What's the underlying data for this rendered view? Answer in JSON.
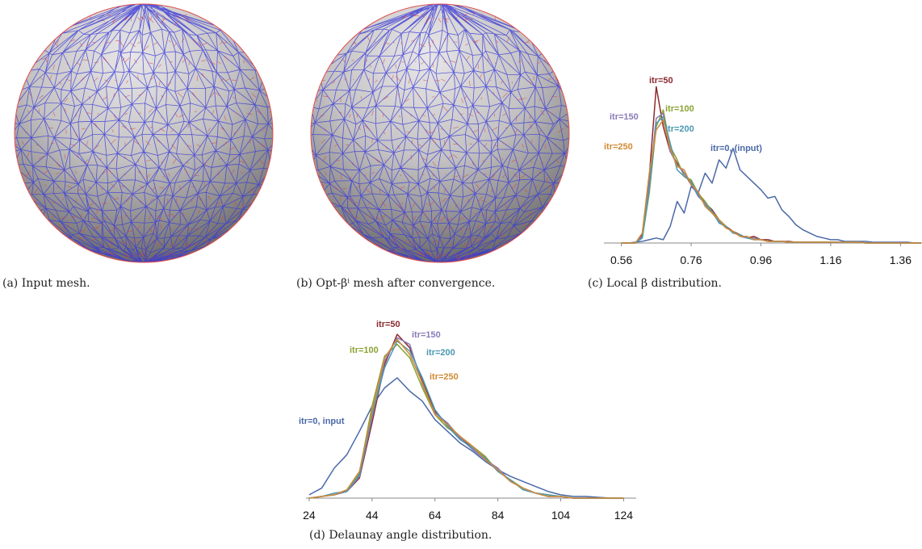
{
  "figure": {
    "captions": [
      "(a) Input mesh.",
      "(b) Opt-βⁱ mesh after convergence."
    ]
  },
  "chart_data": [
    {
      "type": "line",
      "caption": "(c) Local β distribution.",
      "x": [
        0.56,
        0.58,
        0.6,
        0.62,
        0.64,
        0.66,
        0.68,
        0.7,
        0.72,
        0.74,
        0.76,
        0.78,
        0.8,
        0.82,
        0.84,
        0.86,
        0.88,
        0.9,
        0.92,
        0.94,
        0.96,
        0.98,
        1.0,
        1.02,
        1.04,
        1.06,
        1.08,
        1.1,
        1.12,
        1.14,
        1.16,
        1.18,
        1.2,
        1.22,
        1.24,
        1.26,
        1.28,
        1.3,
        1.32,
        1.34,
        1.36,
        1.38,
        1.4,
        1.42
      ],
      "xlim": [
        0.51,
        1.41
      ],
      "ylim": [
        0,
        100
      ],
      "xticks": [
        0.56,
        0.76,
        0.96,
        1.16,
        1.36
      ],
      "series": [
        {
          "name": "itr=0, (input)",
          "color": "#4a69a8",
          "values": [
            0,
            0,
            0.5,
            1,
            2,
            3,
            2,
            10,
            25,
            18,
            34,
            30,
            42,
            36,
            50,
            45,
            57,
            44,
            40,
            36,
            32,
            27,
            28,
            20,
            16,
            11,
            8,
            6,
            4,
            3,
            2,
            2,
            1,
            1,
            1,
            1,
            0.5,
            0.5,
            0.5,
            0.5,
            0.5,
            0.5,
            0,
            0
          ]
        },
        {
          "name": "itr=50",
          "color": "#8b2a2e",
          "values": [
            0,
            0,
            0,
            5,
            40,
            94,
            70,
            55,
            48,
            42,
            35,
            30,
            24,
            20,
            14,
            10,
            7,
            5,
            3,
            4,
            2,
            2,
            1,
            1,
            1,
            0.5,
            0.5,
            0.5,
            0.5,
            0.5,
            0.5,
            0.5,
            0.5,
            0.5,
            0.5,
            0,
            0,
            0,
            0,
            0,
            0,
            0,
            0,
            0
          ]
        },
        {
          "name": "itr=100",
          "color": "#8aa233",
          "values": [
            0,
            0,
            0,
            3,
            30,
            70,
            80,
            58,
            50,
            40,
            38,
            30,
            25,
            19,
            14,
            10,
            6,
            5,
            3,
            3,
            2,
            1,
            1,
            1,
            0.5,
            0.5,
            0.5,
            0.5,
            0.5,
            0.5,
            0.5,
            0.5,
            0.5,
            0.5,
            0.5,
            0,
            0,
            0,
            0,
            0,
            0,
            0,
            0,
            0
          ]
        },
        {
          "name": "itr=150",
          "color": "#8a7bb8",
          "values": [
            0,
            0,
            0,
            4,
            35,
            75,
            78,
            55,
            47,
            42,
            36,
            28,
            24,
            18,
            13,
            9,
            7,
            4,
            3,
            3,
            2,
            1,
            1,
            1,
            0.5,
            0.5,
            0.5,
            0.5,
            0.5,
            0.5,
            0.5,
            0.5,
            0.5,
            0.5,
            0.5,
            0,
            0,
            0,
            0,
            0,
            0,
            0,
            0,
            0
          ]
        },
        {
          "name": "itr=200",
          "color": "#4a98b2",
          "values": [
            0,
            0,
            0,
            3,
            32,
            72,
            76,
            60,
            44,
            40,
            37,
            29,
            23,
            19,
            12,
            10,
            6,
            5,
            3,
            2,
            2,
            1,
            1,
            1,
            0.5,
            0.5,
            0.5,
            0.5,
            0.5,
            0.5,
            0.5,
            0.5,
            0.5,
            0.5,
            0.5,
            0,
            0,
            0,
            0,
            0,
            0,
            0,
            0,
            0
          ]
        },
        {
          "name": "itr=250",
          "color": "#d08a35",
          "values": [
            0,
            0,
            0,
            6,
            42,
            68,
            74,
            57,
            46,
            44,
            35,
            31,
            22,
            18,
            14,
            9,
            7,
            4,
            4,
            2,
            2,
            1,
            1,
            1,
            0.5,
            0.5,
            0.5,
            0.5,
            0.5,
            0.5,
            0.5,
            0.5,
            0.5,
            0.5,
            0.5,
            0,
            0,
            0,
            0,
            0,
            0,
            0,
            0,
            0
          ]
        }
      ]
    },
    {
      "type": "line",
      "caption": "(d) Delaunay angle distribution.",
      "x": [
        24,
        28,
        32,
        36,
        40,
        44,
        48,
        52,
        56,
        60,
        64,
        68,
        72,
        76,
        80,
        84,
        88,
        92,
        96,
        100,
        104,
        108,
        112,
        116,
        120,
        124
      ],
      "xlim": [
        23,
        128
      ],
      "ylim": [
        0,
        100
      ],
      "xticks": [
        24,
        44,
        64,
        84,
        104,
        124
      ],
      "series": [
        {
          "name": "itr=0, input",
          "color": "#4a69a8",
          "values": [
            2,
            6,
            18,
            26,
            40,
            55,
            66,
            72,
            64,
            58,
            47,
            40,
            33,
            28,
            22,
            17,
            13,
            10,
            7,
            4,
            2,
            1,
            1,
            0.5,
            0,
            0
          ]
        },
        {
          "name": "itr=50",
          "color": "#8b2a2e",
          "values": [
            0,
            1,
            2,
            4,
            12,
            45,
            80,
            98,
            90,
            70,
            52,
            44,
            36,
            30,
            24,
            17,
            10,
            6,
            3,
            1,
            1,
            0,
            0,
            0,
            0,
            0
          ]
        },
        {
          "name": "itr=100",
          "color": "#8aa233",
          "values": [
            0,
            1,
            2,
            5,
            15,
            55,
            85,
            92,
            84,
            66,
            50,
            42,
            37,
            31,
            25,
            16,
            11,
            6,
            3,
            2,
            1,
            0,
            0,
            0,
            0,
            0
          ]
        },
        {
          "name": "itr=150",
          "color": "#8a7bb8",
          "values": [
            0,
            1,
            2,
            4,
            13,
            48,
            82,
            96,
            92,
            68,
            51,
            45,
            36,
            29,
            23,
            18,
            10,
            6,
            3,
            1,
            1,
            0,
            0,
            0,
            0,
            0
          ]
        },
        {
          "name": "itr=200",
          "color": "#4a98b2",
          "values": [
            0,
            1,
            3,
            4,
            14,
            50,
            78,
            94,
            88,
            72,
            53,
            43,
            35,
            30,
            24,
            16,
            11,
            5,
            3,
            2,
            1,
            0,
            0,
            0,
            0,
            0
          ]
        },
        {
          "name": "itr=250",
          "color": "#d08a35",
          "values": [
            0,
            1,
            2,
            5,
            16,
            52,
            84,
            95,
            86,
            69,
            50,
            44,
            37,
            31,
            23,
            17,
            10,
            6,
            3,
            1,
            1,
            0,
            0,
            0,
            0,
            0
          ]
        }
      ]
    }
  ]
}
